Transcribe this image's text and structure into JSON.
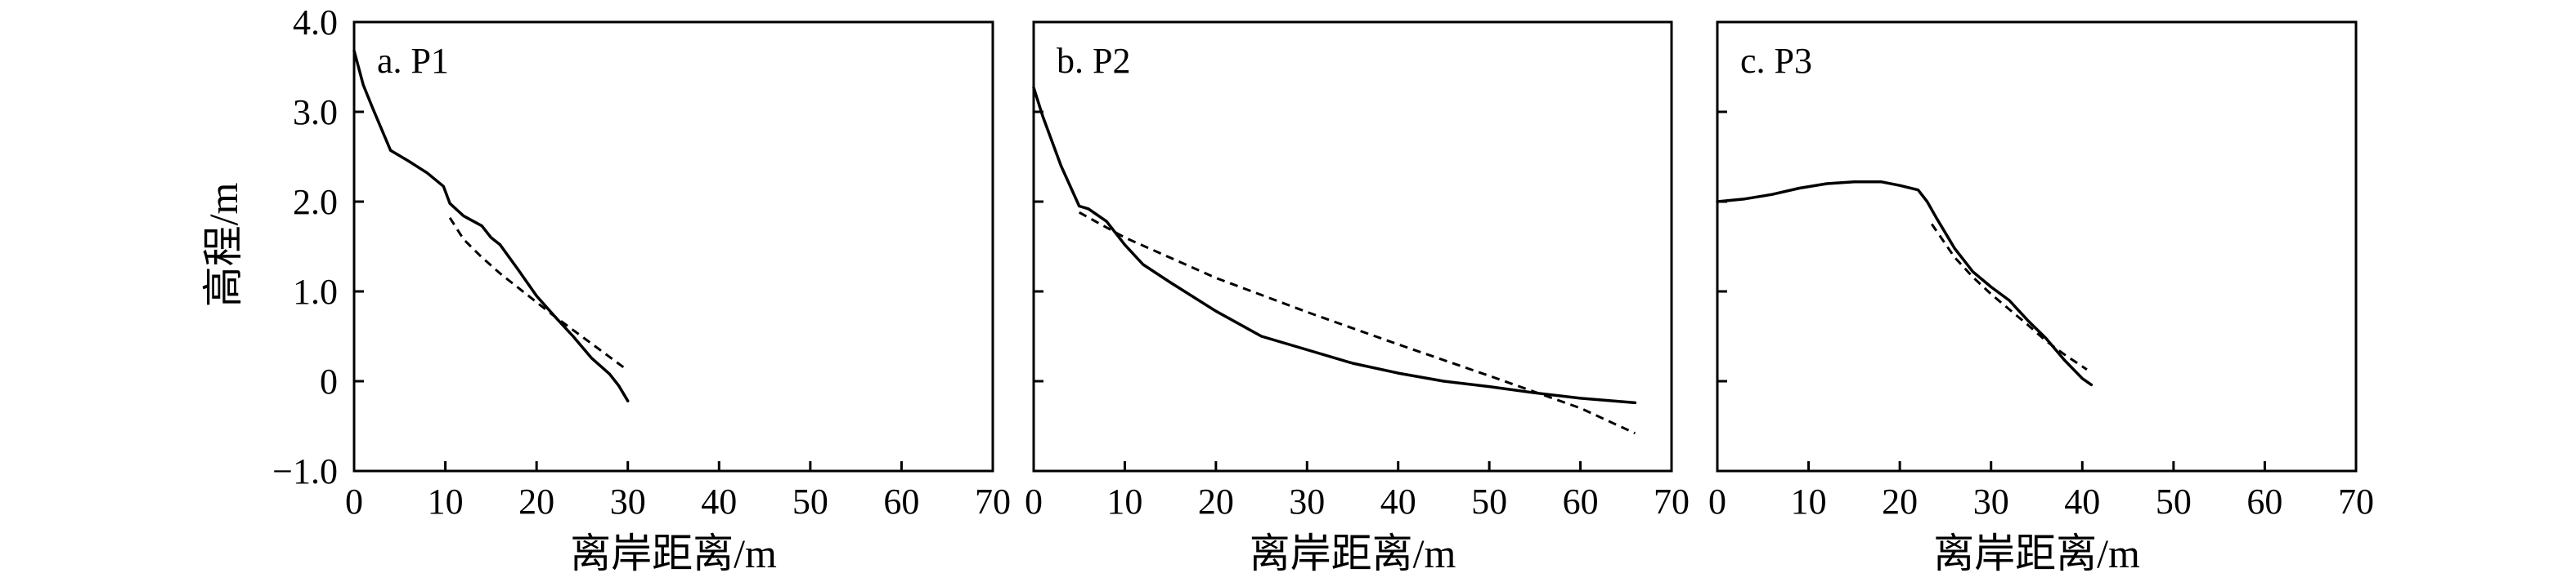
{
  "figure": {
    "ylabel": "高程/m"
  },
  "chart_data": [
    {
      "type": "line",
      "panel_label": "a. P1",
      "xlabel": "离岸距离/m",
      "ylabel": "高程/m",
      "xlim": [
        0,
        70
      ],
      "ylim": [
        -1.0,
        4.0
      ],
      "xticks": [
        "0",
        "10",
        "20",
        "30",
        "40",
        "50",
        "60",
        "70"
      ],
      "yticks": [
        "4.0",
        "3.0",
        "2.0",
        "1.0",
        "0",
        "−1.0"
      ],
      "series": [
        {
          "style": "solid",
          "x": [
            0,
            1,
            2,
            4,
            6,
            8,
            9.8,
            10.5,
            12,
            14,
            15,
            16,
            18,
            20,
            22,
            24,
            26,
            28,
            29,
            30
          ],
          "y": [
            3.68,
            3.3,
            3.05,
            2.57,
            2.45,
            2.32,
            2.17,
            1.98,
            1.84,
            1.73,
            1.6,
            1.52,
            1.24,
            0.95,
            0.72,
            0.5,
            0.26,
            0.08,
            -0.05,
            -0.22
          ]
        },
        {
          "style": "dashed",
          "x": [
            10.5,
            12,
            14,
            16,
            18,
            20,
            22,
            24,
            26,
            28,
            30
          ],
          "y": [
            1.82,
            1.58,
            1.38,
            1.2,
            1.04,
            0.88,
            0.72,
            0.57,
            0.42,
            0.27,
            0.12
          ]
        }
      ]
    },
    {
      "type": "line",
      "panel_label": "b. P2",
      "xlabel": "离岸距离/m",
      "xlim": [
        0,
        70
      ],
      "ylim": [
        -1.0,
        4.0
      ],
      "xticks": [
        "0",
        "10",
        "20",
        "30",
        "40",
        "50",
        "60",
        "70"
      ],
      "series": [
        {
          "style": "solid",
          "x": [
            0,
            1,
            3,
            5,
            6,
            8,
            10,
            12,
            15,
            20,
            25,
            30,
            35,
            40,
            45,
            50,
            55,
            60,
            66
          ],
          "y": [
            3.27,
            2.95,
            2.4,
            1.95,
            1.92,
            1.78,
            1.52,
            1.3,
            1.1,
            0.78,
            0.5,
            0.35,
            0.2,
            0.09,
            0.0,
            -0.06,
            -0.13,
            -0.19,
            -0.24
          ]
        },
        {
          "style": "dashed",
          "x": [
            5,
            10,
            20,
            30,
            40,
            50,
            60,
            66
          ],
          "y": [
            1.88,
            1.6,
            1.15,
            0.77,
            0.41,
            0.06,
            -0.3,
            -0.58
          ]
        }
      ]
    },
    {
      "type": "line",
      "panel_label": "c. P3",
      "xlabel": "离岸距离/m",
      "xlim": [
        0,
        70
      ],
      "ylim": [
        -1.0,
        4.0
      ],
      "xticks": [
        "0",
        "10",
        "20",
        "30",
        "40",
        "50",
        "60",
        "70"
      ],
      "series": [
        {
          "style": "solid",
          "x": [
            0,
            3,
            6,
            9,
            12,
            15,
            18,
            20,
            22,
            23,
            24,
            26,
            28,
            30,
            32,
            34,
            36,
            38,
            40,
            41
          ],
          "y": [
            2.0,
            2.03,
            2.08,
            2.15,
            2.2,
            2.22,
            2.22,
            2.18,
            2.13,
            2.0,
            1.82,
            1.48,
            1.22,
            1.05,
            0.9,
            0.68,
            0.48,
            0.24,
            0.03,
            -0.04
          ]
        },
        {
          "style": "dashed",
          "x": [
            23.5,
            26,
            28,
            30,
            32,
            34,
            36,
            38,
            40.5
          ],
          "y": [
            1.75,
            1.38,
            1.16,
            0.97,
            0.8,
            0.63,
            0.45,
            0.3,
            0.13
          ]
        }
      ]
    }
  ]
}
